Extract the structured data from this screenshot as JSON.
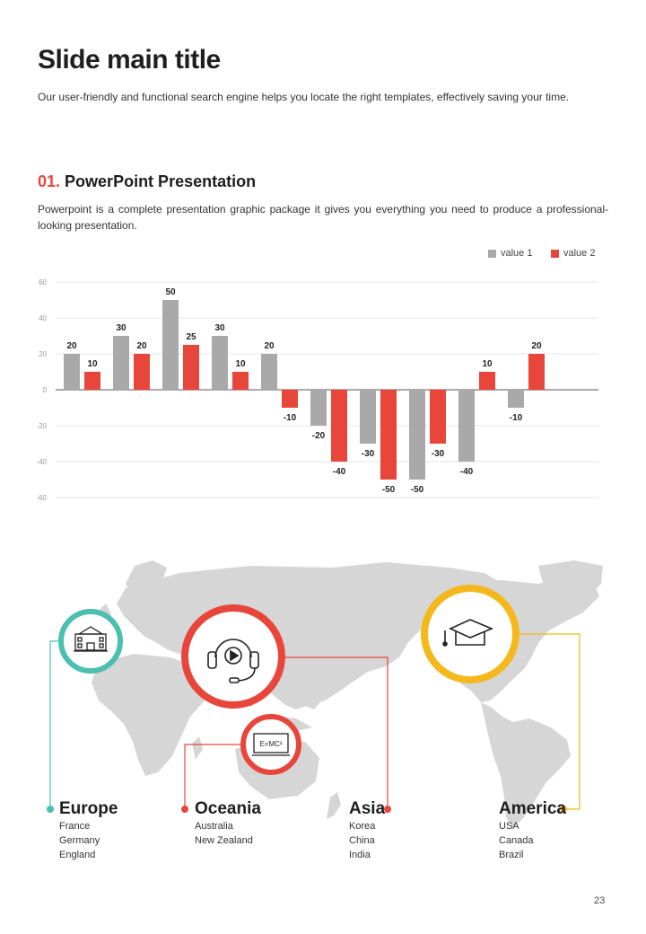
{
  "header": {
    "title": "Slide main title",
    "subtitle": "Our user-friendly and functional search engine helps you locate the right templates, effectively saving your time."
  },
  "section": {
    "number": "01.",
    "title": "PowerPoint Presentation",
    "description": "Powerpoint is a complete presentation graphic package it gives you everything you need to produce a professional-looking presentation."
  },
  "colors": {
    "gray": "#a9a9a9",
    "red": "#e8463b",
    "teal": "#4bbfb0",
    "yellow": "#f5b81c",
    "map": "#d6d6d6"
  },
  "chart_data": {
    "type": "bar",
    "categories": [
      "",
      "",
      "",
      "",
      "",
      "",
      "",
      "",
      "",
      "",
      ""
    ],
    "series": [
      {
        "name": "value 1",
        "values": [
          20,
          30,
          50,
          30,
          20,
          -20,
          -30,
          -50,
          -40,
          -10,
          null
        ]
      },
      {
        "name": "value 2",
        "values": [
          10,
          20,
          25,
          10,
          -10,
          -40,
          -50,
          -30,
          10,
          20,
          null
        ]
      }
    ],
    "y_ticks": [
      "60",
      "40",
      "20",
      "0",
      "-20",
      "-40",
      "-60"
    ],
    "ylim": [
      -60,
      60
    ],
    "grid": true,
    "legend": "top-right"
  },
  "regions": [
    {
      "name": "Europe",
      "items": [
        "France",
        "Germany",
        "England"
      ]
    },
    {
      "name": "Oceania",
      "items": [
        "Australia",
        "New Zealand"
      ]
    },
    {
      "name": "Asia",
      "items": [
        "Korea",
        "China",
        "India"
      ]
    },
    {
      "name": "America",
      "items": [
        "USA",
        "Canada",
        "Brazil"
      ]
    }
  ],
  "icons": {
    "europe": "school-building-icon",
    "asia": "headphones-play-icon",
    "oceania": "formula-board-icon",
    "america": "graduation-cap-icon",
    "formula_text": "E=MC²"
  },
  "page_number": "23"
}
